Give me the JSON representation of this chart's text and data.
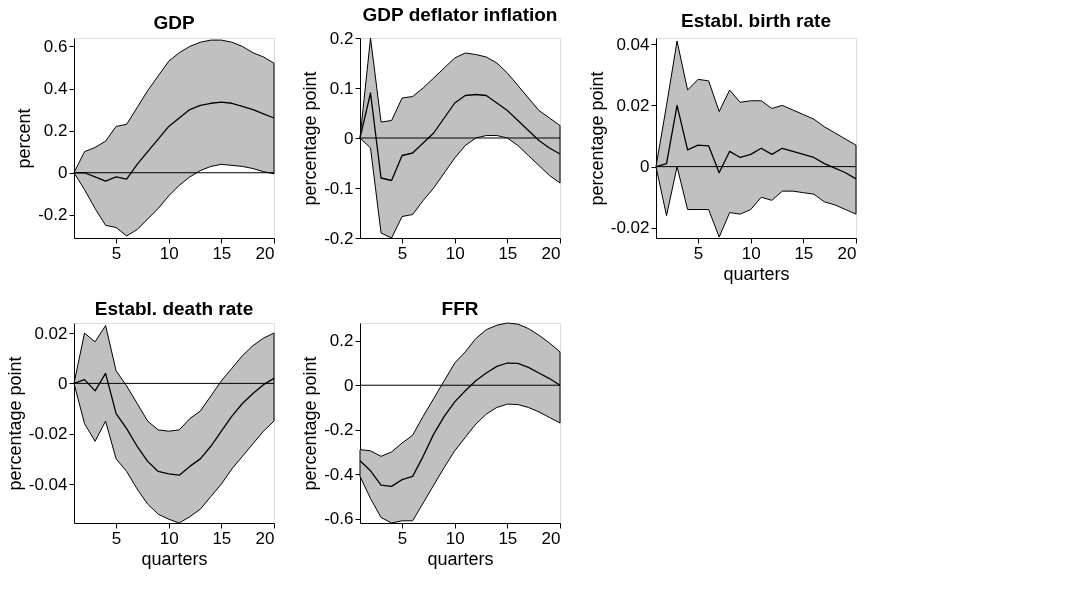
{
  "chart_data": [
    {
      "type": "line",
      "title": "GDP",
      "ylabel": "percent",
      "x": [
        1,
        2,
        3,
        4,
        5,
        6,
        7,
        8,
        9,
        10,
        11,
        12,
        13,
        14,
        15,
        16,
        17,
        18,
        19,
        20
      ],
      "xlim": [
        1,
        20
      ],
      "xticks": [
        5,
        10,
        15,
        20
      ],
      "ylim": [
        -0.31,
        0.64
      ],
      "yticks": [
        -0.2,
        0,
        0.2,
        0.4,
        0.6
      ],
      "ref_lines": [
        {
          "axis": "y",
          "value": 0,
          "color": "#000000"
        }
      ],
      "series": [
        {
          "color": "#000000",
          "values": [
            0,
            0,
            -0.02,
            -0.04,
            -0.02,
            -0.03,
            0.04,
            0.1,
            0.16,
            0.22,
            0.26,
            0.3,
            0.32,
            0.33,
            0.335,
            0.33,
            0.315,
            0.3,
            0.28,
            0.26
          ],
          "upper": [
            0,
            0.1,
            0.12,
            0.15,
            0.22,
            0.23,
            0.31,
            0.39,
            0.46,
            0.53,
            0.57,
            0.6,
            0.62,
            0.63,
            0.63,
            0.62,
            0.6,
            0.57,
            0.55,
            0.52
          ],
          "lower": [
            0,
            -0.08,
            -0.17,
            -0.25,
            -0.26,
            -0.3,
            -0.27,
            -0.22,
            -0.17,
            -0.11,
            -0.06,
            -0.02,
            0.01,
            0.03,
            0.04,
            0.035,
            0.03,
            0.02,
            0.005,
            -0.005
          ]
        }
      ]
    },
    {
      "type": "line",
      "title": "GDP deflator inflation",
      "ylabel": "percentage point",
      "x": [
        1,
        2,
        3,
        4,
        5,
        6,
        7,
        8,
        9,
        10,
        11,
        12,
        13,
        14,
        15,
        16,
        17,
        18,
        19,
        20
      ],
      "xlim": [
        1,
        20
      ],
      "xticks": [
        5,
        10,
        15,
        20
      ],
      "ylim": [
        -0.2,
        0.2
      ],
      "yticks": [
        -0.2,
        -0.1,
        0,
        0.1,
        0.2
      ],
      "ref_lines": [
        {
          "axis": "y",
          "value": 0,
          "color": "#000000"
        }
      ],
      "series": [
        {
          "color": "#000000",
          "values": [
            0,
            0.09,
            -0.08,
            -0.085,
            -0.035,
            -0.03,
            -0.01,
            0.01,
            0.04,
            0.07,
            0.085,
            0.087,
            0.085,
            0.07,
            0.055,
            0.035,
            0.015,
            -0.005,
            -0.02,
            -0.032
          ],
          "upper": [
            0,
            0.2,
            0.032,
            0.035,
            0.08,
            0.083,
            0.1,
            0.12,
            0.14,
            0.16,
            0.17,
            0.167,
            0.162,
            0.15,
            0.13,
            0.105,
            0.08,
            0.055,
            0.04,
            0.025
          ],
          "lower": [
            0,
            -0.02,
            -0.19,
            -0.2,
            -0.157,
            -0.153,
            -0.125,
            -0.1,
            -0.07,
            -0.04,
            -0.015,
            0,
            0.005,
            0.005,
            0,
            -0.015,
            -0.035,
            -0.055,
            -0.075,
            -0.09
          ]
        }
      ]
    },
    {
      "type": "line",
      "title": "Establ. birth rate",
      "ylabel": "percentage point",
      "xlabel": "quarters",
      "x": [
        1,
        2,
        3,
        4,
        5,
        6,
        7,
        8,
        9,
        10,
        11,
        12,
        13,
        14,
        15,
        16,
        17,
        18,
        19,
        20
      ],
      "xlim": [
        1,
        20
      ],
      "xticks": [
        5,
        10,
        15,
        20
      ],
      "ylim": [
        -0.0233,
        0.042
      ],
      "yticks": [
        -0.02,
        0,
        0.02,
        0.04
      ],
      "ref_lines": [
        {
          "axis": "y",
          "value": 0,
          "color": "#000000"
        }
      ],
      "series": [
        {
          "color": "#000000",
          "values": [
            0,
            0.001,
            0.02,
            0.0055,
            0.007,
            0.0068,
            -0.002,
            0.005,
            0.003,
            0.004,
            0.006,
            0.004,
            0.006,
            0.005,
            0.004,
            0.003,
            0.001,
            -0.0005,
            -0.002,
            -0.004
          ],
          "upper": [
            0,
            0.02,
            0.041,
            0.025,
            0.0285,
            0.028,
            0.018,
            0.025,
            0.021,
            0.0215,
            0.0215,
            0.019,
            0.02,
            0.0185,
            0.017,
            0.0155,
            0.013,
            0.011,
            0.009,
            0.007
          ],
          "lower": [
            0,
            -0.016,
            0,
            -0.014,
            -0.014,
            -0.014,
            -0.023,
            -0.015,
            -0.0155,
            -0.014,
            -0.01,
            -0.011,
            -0.008,
            -0.008,
            -0.0085,
            -0.009,
            -0.0115,
            -0.0125,
            -0.014,
            -0.0155
          ]
        }
      ]
    },
    {
      "type": "line",
      "title": "Establ. death rate",
      "ylabel": "percentage point",
      "xlabel": "quarters",
      "x": [
        1,
        2,
        3,
        4,
        5,
        6,
        7,
        8,
        9,
        10,
        11,
        12,
        13,
        14,
        15,
        16,
        17,
        18,
        19,
        20
      ],
      "xlim": [
        1,
        20
      ],
      "xticks": [
        5,
        10,
        15,
        20
      ],
      "ylim": [
        -0.0555,
        0.024
      ],
      "yticks": [
        -0.04,
        -0.02,
        0,
        0.02
      ],
      "ref_lines": [
        {
          "axis": "y",
          "value": 0,
          "color": "#000000"
        }
      ],
      "series": [
        {
          "color": "#000000",
          "values": [
            0,
            0.0015,
            -0.003,
            0.004,
            -0.012,
            -0.018,
            -0.025,
            -0.031,
            -0.035,
            -0.036,
            -0.0365,
            -0.033,
            -0.03,
            -0.025,
            -0.019,
            -0.013,
            -0.008,
            -0.004,
            -0.0005,
            0.002
          ],
          "upper": [
            0,
            0.02,
            0.0165,
            0.023,
            0.005,
            -0.001,
            -0.008,
            -0.015,
            -0.0185,
            -0.019,
            -0.0185,
            -0.014,
            -0.011,
            -0.005,
            0.001,
            0.006,
            0.011,
            0.015,
            0.018,
            0.02
          ],
          "lower": [
            0,
            -0.016,
            -0.023,
            -0.015,
            -0.03,
            -0.035,
            -0.042,
            -0.048,
            -0.052,
            -0.054,
            -0.0555,
            -0.053,
            -0.05,
            -0.045,
            -0.04,
            -0.034,
            -0.029,
            -0.024,
            -0.019,
            -0.015
          ]
        }
      ]
    },
    {
      "type": "line",
      "title": "FFR",
      "ylabel": "percentage point",
      "xlabel": "quarters",
      "x": [
        1,
        2,
        3,
        4,
        5,
        6,
        7,
        8,
        9,
        10,
        11,
        12,
        13,
        14,
        15,
        16,
        17,
        18,
        19,
        20
      ],
      "xlim": [
        1,
        20
      ],
      "xticks": [
        5,
        10,
        15,
        20
      ],
      "ylim": [
        -0.62,
        0.28
      ],
      "yticks": [
        -0.6,
        -0.4,
        -0.2,
        0,
        0.2
      ],
      "ref_lines": [
        {
          "axis": "y",
          "value": 0,
          "color": "#000000"
        }
      ],
      "series": [
        {
          "color": "#000000",
          "values": [
            -0.34,
            -0.385,
            -0.45,
            -0.455,
            -0.425,
            -0.41,
            -0.32,
            -0.22,
            -0.14,
            -0.075,
            -0.025,
            0.02,
            0.055,
            0.085,
            0.1,
            0.098,
            0.08,
            0.055,
            0.03,
            0
          ],
          "upper": [
            -0.29,
            -0.295,
            -0.32,
            -0.3,
            -0.26,
            -0.225,
            -0.14,
            -0.06,
            0.02,
            0.1,
            0.15,
            0.21,
            0.25,
            0.27,
            0.28,
            0.275,
            0.255,
            0.225,
            0.19,
            0.15
          ],
          "lower": [
            -0.41,
            -0.51,
            -0.595,
            -0.62,
            -0.61,
            -0.61,
            -0.53,
            -0.45,
            -0.37,
            -0.295,
            -0.235,
            -0.175,
            -0.13,
            -0.1,
            -0.085,
            -0.087,
            -0.1,
            -0.12,
            -0.145,
            -0.17
          ]
        }
      ]
    }
  ]
}
